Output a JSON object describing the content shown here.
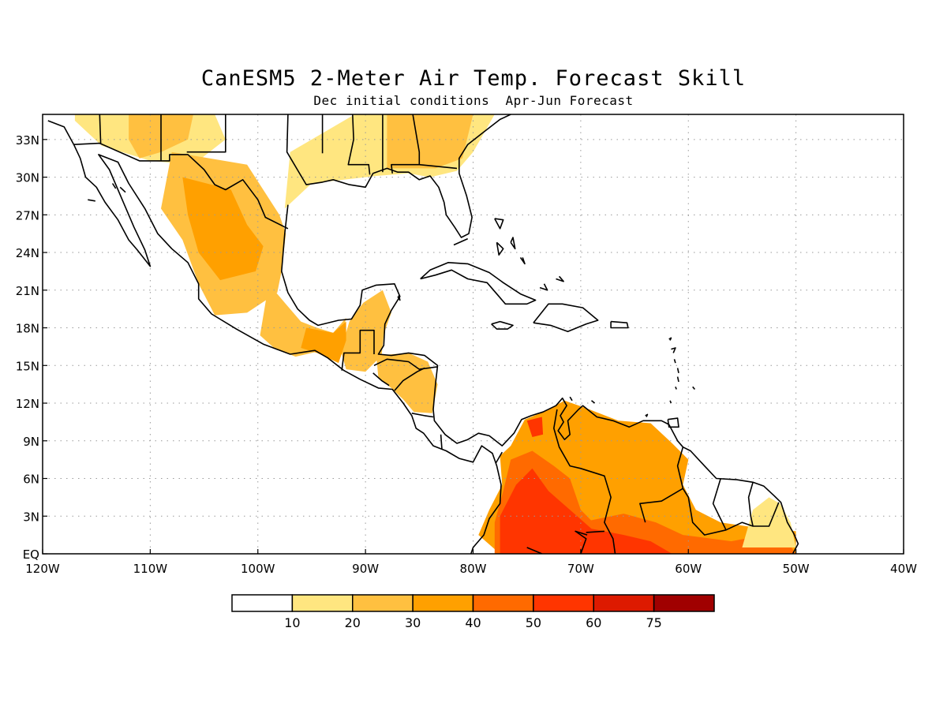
{
  "title": "CanESM5 2-Meter Air Temp. Forecast Skill",
  "subtitle": "Dec initial conditions  Apr-Jun Forecast",
  "map": {
    "lon_range": [
      -120,
      -40
    ],
    "lat_range": [
      0,
      35
    ],
    "x_ticks": [
      "120W",
      "110W",
      "100W",
      "90W",
      "80W",
      "70W",
      "60W",
      "50W",
      "40W"
    ],
    "y_ticks": [
      "EQ",
      "3N",
      "6N",
      "9N",
      "12N",
      "15N",
      "18N",
      "21N",
      "24N",
      "27N",
      "30N",
      "33N"
    ],
    "grid": "dotted",
    "shaded_regions": [
      {
        "region": "Southwest United States",
        "class": 1
      },
      {
        "region": "Arizona / New Mexico",
        "class": 2
      },
      {
        "region": "Southeast United States",
        "class": 1
      },
      {
        "region": "Alabama / Georgia",
        "class": 2
      },
      {
        "region": "Northern Mexico",
        "class": 2
      },
      {
        "region": "Mexico plateau",
        "class": 3
      },
      {
        "region": "Central Mexico",
        "class": 2
      },
      {
        "region": "Yucatan / Guatemala",
        "class": 2
      },
      {
        "region": "Southern Mexico coast",
        "class": 3
      },
      {
        "region": "Honduras / Nicaragua",
        "class": 2
      },
      {
        "region": "Colombia / Venezuela",
        "class": 3
      },
      {
        "region": "Colombia interior",
        "class": 4
      },
      {
        "region": "Western Venezuela",
        "class": 5
      },
      {
        "region": "Northern Brazil",
        "class": 4
      },
      {
        "region": "Amazon",
        "class": 5
      },
      {
        "region": "Guyana / Amapa",
        "class": 1
      }
    ]
  },
  "legend": {
    "colors": [
      "#ffffff",
      "#ffe680",
      "#ffc040",
      "#ffa000",
      "#ff6a00",
      "#ff3500",
      "#dd1a00",
      "#a00000"
    ],
    "labels": [
      "10",
      "20",
      "30",
      "40",
      "50",
      "60",
      "75"
    ]
  }
}
